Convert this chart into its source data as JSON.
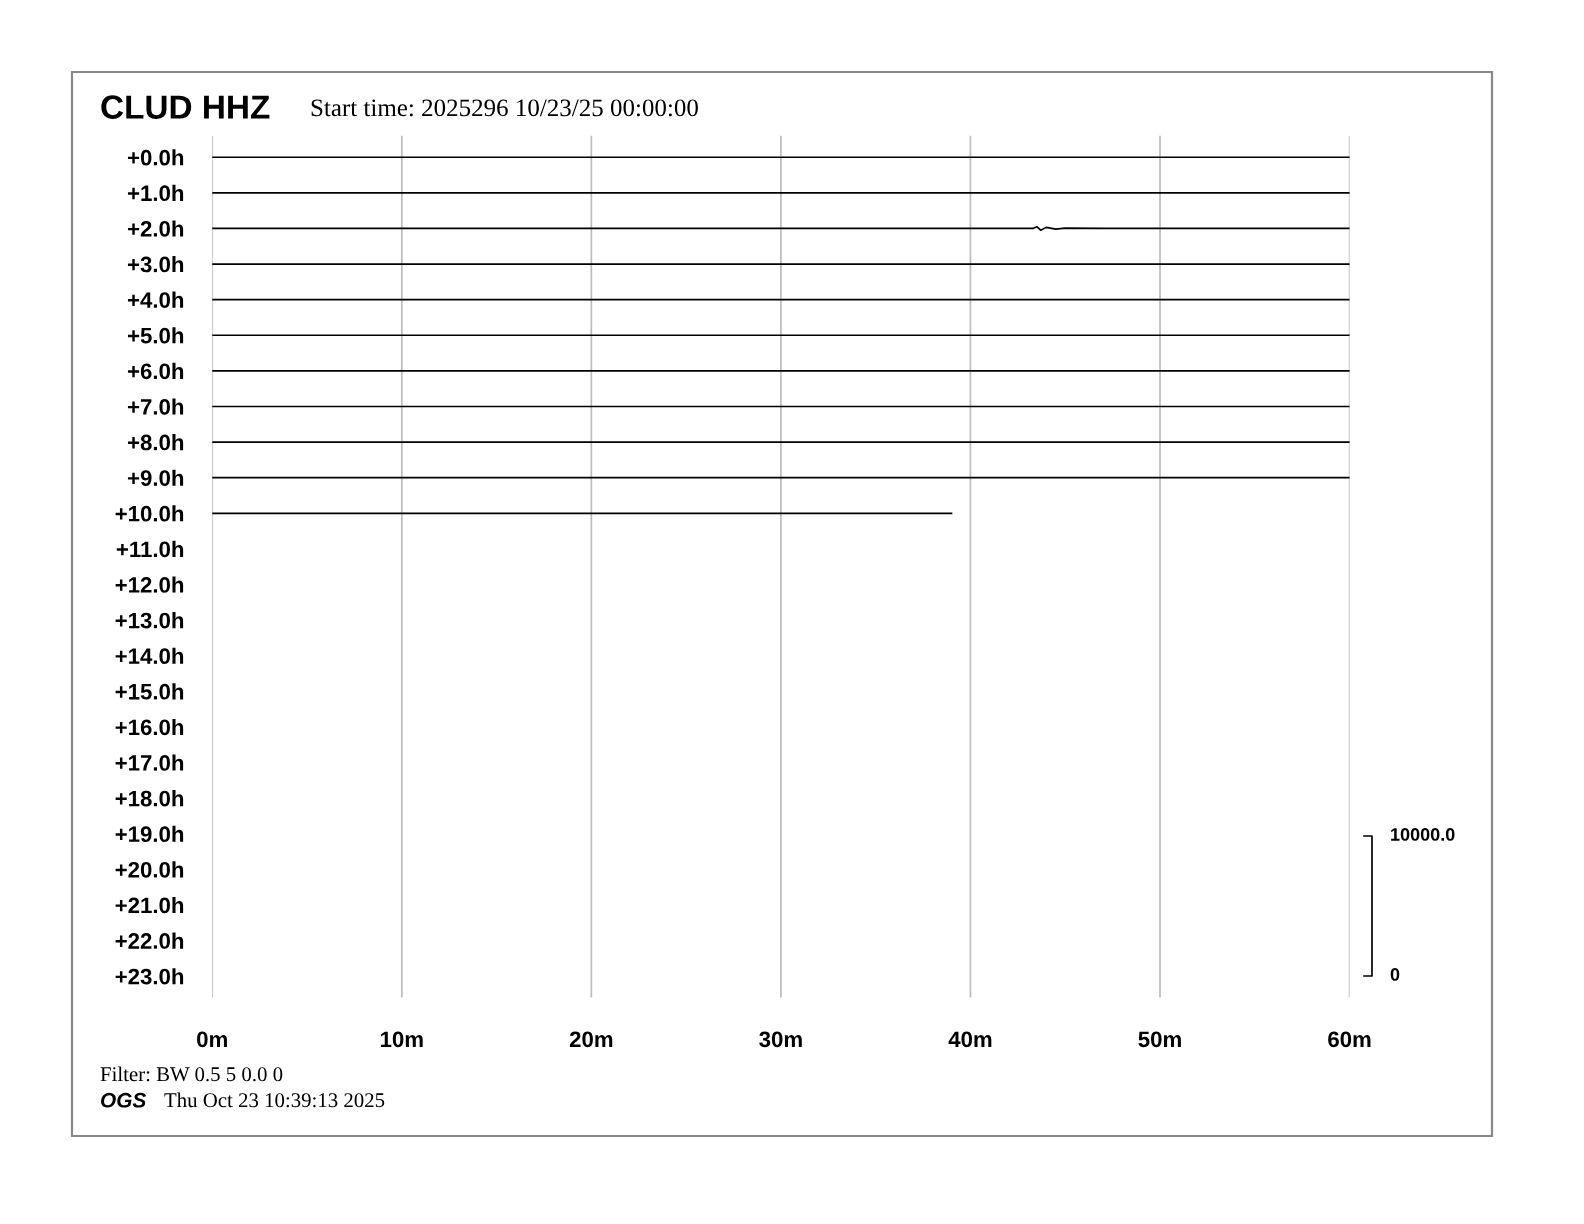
{
  "chart_data": {
    "type": "line",
    "title": "CLUD HHZ",
    "subtitle": "Start time: 2025296 10/23/25 00:00:00",
    "annotations": [
      "10000.0",
      "0",
      "Filter: BW 0.5 5 0.0 0",
      "OGS",
      "Thu Oct 23 10:39:13 2025"
    ],
    "xlim": [
      0,
      60
    ],
    "xticks": [
      {
        "value": 0,
        "label": "0m"
      },
      {
        "value": 10,
        "label": "10m"
      },
      {
        "value": 20,
        "label": "20m"
      },
      {
        "value": 30,
        "label": "30m"
      },
      {
        "value": 40,
        "label": "40m"
      },
      {
        "value": 50,
        "label": "50m"
      },
      {
        "value": 60,
        "label": "60m"
      }
    ],
    "ylim": [
      23.6,
      -0.6
    ],
    "yticks": [
      {
        "value": 0,
        "label": "+0.0h"
      },
      {
        "value": 1,
        "label": "+1.0h"
      },
      {
        "value": 2,
        "label": "+2.0h"
      },
      {
        "value": 3,
        "label": "+3.0h"
      },
      {
        "value": 4,
        "label": "+4.0h"
      },
      {
        "value": 5,
        "label": "+5.0h"
      },
      {
        "value": 6,
        "label": "+6.0h"
      },
      {
        "value": 7,
        "label": "+7.0h"
      },
      {
        "value": 8,
        "label": "+8.0h"
      },
      {
        "value": 9,
        "label": "+9.0h"
      },
      {
        "value": 10,
        "label": "+10.0h"
      },
      {
        "value": 11,
        "label": "+11.0h"
      },
      {
        "value": 12,
        "label": "+12.0h"
      },
      {
        "value": 13,
        "label": "+13.0h"
      },
      {
        "value": 14,
        "label": "+14.0h"
      },
      {
        "value": 15,
        "label": "+15.0h"
      },
      {
        "value": 16,
        "label": "+16.0h"
      },
      {
        "value": 17,
        "label": "+17.0h"
      },
      {
        "value": 18,
        "label": "+18.0h"
      },
      {
        "value": 19,
        "label": "+19.0h"
      },
      {
        "value": 20,
        "label": "+20.0h"
      },
      {
        "value": 21,
        "label": "+21.0h"
      },
      {
        "value": 22,
        "label": "+22.0h"
      },
      {
        "value": 23,
        "label": "+23.0h"
      }
    ],
    "grid": "x",
    "marker": "none",
    "line_style": "solid",
    "series": [
      {
        "color": "#000000",
        "x": [
          0,
          60
        ],
        "values": [
          0,
          0
        ]
      },
      {
        "color": "#000000",
        "x": [
          0,
          60
        ],
        "values": [
          1,
          1
        ]
      },
      {
        "color": "#000000",
        "x": [
          0,
          43.3,
          43.5,
          43.7,
          44,
          44.5,
          45,
          47,
          60
        ],
        "values": [
          2,
          2,
          1.95,
          2.05,
          1.97,
          2.02,
          1.99,
          2,
          2
        ]
      },
      {
        "color": "#000000",
        "x": [
          0,
          60
        ],
        "values": [
          3,
          3
        ]
      },
      {
        "color": "#000000",
        "x": [
          0,
          60
        ],
        "values": [
          4,
          4
        ]
      },
      {
        "color": "#000000",
        "x": [
          0,
          60
        ],
        "values": [
          5,
          5
        ]
      },
      {
        "color": "#000000",
        "x": [
          0,
          60
        ],
        "values": [
          6,
          6
        ]
      },
      {
        "color": "#000000",
        "x": [
          0,
          60
        ],
        "values": [
          7,
          7
        ]
      },
      {
        "color": "#000000",
        "x": [
          0,
          60
        ],
        "values": [
          8,
          8
        ]
      },
      {
        "color": "#000000",
        "x": [
          0,
          60
        ],
        "values": [
          9,
          9
        ]
      },
      {
        "color": "#000000",
        "x": [
          0,
          39
        ],
        "values": [
          10,
          10
        ]
      }
    ]
  }
}
